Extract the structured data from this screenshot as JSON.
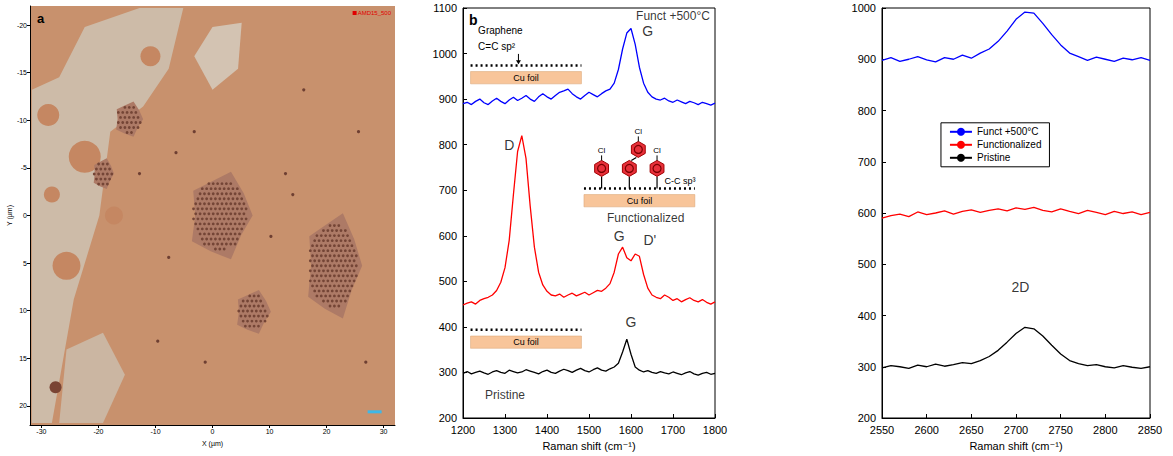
{
  "chart_data": [
    {
      "type": "image",
      "panel_label": "a",
      "stamp": "AMD15_500",
      "x_label": "X (µm)",
      "y_label": "Y (µm)",
      "xlim": [
        -32,
        32
      ],
      "xticks": [
        -30,
        -20,
        -10,
        0,
        10,
        20,
        30
      ],
      "ylim": [
        22,
        -22
      ],
      "yticks": [
        -20,
        -15,
        -10,
        -5,
        0,
        5,
        10,
        15,
        20
      ],
      "grid": false
    },
    {
      "type": "line",
      "panel_label": "b",
      "x_label": "Raman shift (cm⁻¹)",
      "xlim": [
        1200,
        1800
      ],
      "xticks": [
        1200,
        1300,
        1400,
        1500,
        1600,
        1700,
        1800
      ],
      "ylim": [
        200,
        1100
      ],
      "yticks": [
        200,
        300,
        400,
        500,
        600,
        700,
        800,
        900,
        1000,
        1100
      ],
      "grid": false,
      "x": [
        1200,
        1210,
        1220,
        1230,
        1240,
        1250,
        1260,
        1270,
        1280,
        1290,
        1300,
        1310,
        1320,
        1330,
        1340,
        1350,
        1360,
        1370,
        1380,
        1390,
        1400,
        1410,
        1420,
        1430,
        1440,
        1450,
        1460,
        1470,
        1480,
        1490,
        1500,
        1510,
        1520,
        1530,
        1540,
        1550,
        1560,
        1570,
        1580,
        1590,
        1600,
        1610,
        1620,
        1630,
        1640,
        1650,
        1660,
        1670,
        1680,
        1690,
        1700,
        1710,
        1720,
        1730,
        1740,
        1750,
        1760,
        1770,
        1780,
        1790,
        1800
      ],
      "series": [
        {
          "name": "Funct +500°C",
          "color": "#0000ff",
          "values": [
            890,
            893,
            888,
            895,
            900,
            892,
            888,
            896,
            902,
            895,
            890,
            898,
            904,
            897,
            902,
            908,
            900,
            895,
            905,
            912,
            905,
            900,
            908,
            915,
            918,
            922,
            912,
            905,
            900,
            908,
            915,
            910,
            905,
            912,
            918,
            922,
            935,
            965,
            1010,
            1045,
            1055,
            1020,
            970,
            935,
            915,
            905,
            900,
            898,
            902,
            896,
            893,
            898,
            894,
            890,
            895,
            892,
            888,
            893,
            890,
            887,
            891
          ]
        },
        {
          "name": "Functionalized",
          "color": "#ff0000",
          "values": [
            448,
            452,
            455,
            450,
            458,
            462,
            465,
            470,
            480,
            498,
            530,
            590,
            690,
            785,
            820,
            770,
            665,
            575,
            520,
            492,
            478,
            470,
            468,
            472,
            465,
            470,
            474,
            468,
            472,
            476,
            470,
            475,
            480,
            478,
            485,
            495,
            520,
            560,
            575,
            552,
            545,
            560,
            555,
            515,
            485,
            470,
            465,
            462,
            470,
            465,
            458,
            462,
            455,
            460,
            464,
            458,
            455,
            460,
            454,
            450,
            455
          ]
        },
        {
          "name": "Pristine",
          "color": "#000000",
          "values": [
            298,
            302,
            297,
            300,
            303,
            299,
            296,
            301,
            304,
            300,
            298,
            305,
            302,
            299,
            301,
            306,
            303,
            300,
            297,
            302,
            305,
            300,
            298,
            303,
            307,
            304,
            300,
            305,
            309,
            304,
            301,
            306,
            310,
            305,
            303,
            308,
            312,
            320,
            345,
            373,
            340,
            312,
            305,
            301,
            304,
            300,
            298,
            302,
            299,
            297,
            301,
            298,
            295,
            299,
            302,
            297,
            294,
            298,
            300,
            296,
            298
          ]
        }
      ],
      "annotations": [
        {
          "text": "Funct +500°C",
          "x": 1700,
          "y": 1082
        },
        {
          "text": "G",
          "x": 1640,
          "y": 1050
        },
        {
          "text": "D",
          "x": 1310,
          "y": 800
        },
        {
          "text": "G",
          "x": 1572,
          "y": 600
        },
        {
          "text": "D'",
          "x": 1645,
          "y": 590
        },
        {
          "text": "Functionalized",
          "x": 1635,
          "y": 640
        },
        {
          "text": "G",
          "x": 1600,
          "y": 410
        },
        {
          "text": "Pristine",
          "x": 1300,
          "y": 250
        }
      ],
      "insets": [
        {
          "label": "Graphene",
          "bond": "C=C sp²",
          "substrate": "Cu foil"
        },
        {
          "bond": "C-C sp³",
          "substrate": "Cu foil",
          "groups": [
            "Cl",
            "Cl",
            "Cl"
          ]
        },
        {
          "substrate": "Cu foil"
        }
      ]
    },
    {
      "type": "line",
      "x_label": "Raman shift (cm⁻¹)",
      "xlim": [
        2550,
        2850
      ],
      "xticks": [
        2550,
        2600,
        2650,
        2700,
        2750,
        2800,
        2850
      ],
      "ylim": [
        200,
        1000
      ],
      "yticks": [
        200,
        300,
        400,
        500,
        600,
        700,
        800,
        900,
        1000
      ],
      "grid": false,
      "legend": "upper center",
      "x": [
        2550,
        2560,
        2570,
        2580,
        2590,
        2600,
        2610,
        2620,
        2630,
        2640,
        2650,
        2660,
        2670,
        2680,
        2690,
        2700,
        2710,
        2720,
        2730,
        2740,
        2750,
        2760,
        2770,
        2780,
        2790,
        2800,
        2810,
        2820,
        2830,
        2840,
        2850
      ],
      "series": [
        {
          "name": "Funct +500°C",
          "color": "#0000ff",
          "values": [
            898,
            903,
            896,
            900,
            905,
            899,
            895,
            903,
            900,
            908,
            902,
            912,
            920,
            935,
            955,
            978,
            992,
            990,
            970,
            948,
            928,
            912,
            905,
            898,
            904,
            900,
            896,
            902,
            899,
            903,
            898
          ]
        },
        {
          "name": "Functionalized",
          "color": "#ff0000",
          "values": [
            590,
            595,
            598,
            593,
            602,
            597,
            600,
            604,
            598,
            603,
            606,
            601,
            605,
            608,
            604,
            610,
            607,
            611,
            605,
            602,
            608,
            603,
            599,
            605,
            601,
            597,
            603,
            599,
            602,
            597,
            601
          ]
        },
        {
          "name": "Pristine",
          "color": "#000000",
          "values": [
            298,
            302,
            300,
            297,
            303,
            300,
            305,
            301,
            304,
            308,
            306,
            312,
            320,
            332,
            348,
            365,
            377,
            374,
            360,
            342,
            325,
            312,
            306,
            302,
            304,
            300,
            298,
            302,
            299,
            297,
            300
          ]
        }
      ],
      "annotations": [
        {
          "text": "2D",
          "x": 2705,
          "y": 455
        }
      ]
    }
  ]
}
